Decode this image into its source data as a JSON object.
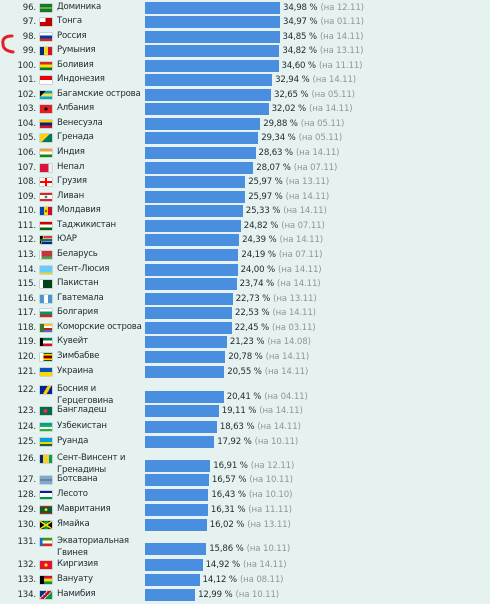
{
  "accent": {
    "bar": "#4a8ee0",
    "marker": "#e31e24",
    "background": "#e6f2ef"
  },
  "rows": [
    {
      "rank": "96.",
      "country": "Доминика",
      "value": 34.98,
      "value_label": "34,98 %",
      "date_label": "(на 12.11)",
      "flag": "dominica-flag-icon"
    },
    {
      "rank": "97.",
      "country": "Тонга",
      "value": 34.97,
      "value_label": "34,97 %",
      "date_label": "(на 01.11)",
      "flag": "tonga-flag-icon"
    },
    {
      "rank": "98.",
      "country": "Россия",
      "value": 34.85,
      "value_label": "34,85 %",
      "date_label": "(на 14.11)",
      "flag": "russia-flag-icon"
    },
    {
      "rank": "99.",
      "country": "Румыния",
      "value": 34.82,
      "value_label": "34,82 %",
      "date_label": "(на 13.11)",
      "flag": "romania-flag-icon"
    },
    {
      "rank": "100.",
      "country": "Боливия",
      "value": 34.6,
      "value_label": "34,60 %",
      "date_label": "(на 11.11)",
      "flag": "bolivia-flag-icon"
    },
    {
      "rank": "101.",
      "country": "Индонезия",
      "value": 32.94,
      "value_label": "32,94 %",
      "date_label": "(на 14.11)",
      "flag": "indonesia-flag-icon"
    },
    {
      "rank": "102.",
      "country": "Багамские острова",
      "value": 32.65,
      "value_label": "32,65 %",
      "date_label": "(на 05.11)",
      "flag": "bahamas-flag-icon"
    },
    {
      "rank": "103.",
      "country": "Албания",
      "value": 32.02,
      "value_label": "32,02 %",
      "date_label": "(на 14.11)",
      "flag": "albania-flag-icon"
    },
    {
      "rank": "104.",
      "country": "Венесуэла",
      "value": 29.88,
      "value_label": "29,88 %",
      "date_label": "(на 05.11)",
      "flag": "venezuela-flag-icon"
    },
    {
      "rank": "105.",
      "country": "Гренада",
      "value": 29.34,
      "value_label": "29,34 %",
      "date_label": "(на 05.11)",
      "flag": "grenada-flag-icon"
    },
    {
      "rank": "106.",
      "country": "Индия",
      "value": 28.63,
      "value_label": "28,63 %",
      "date_label": "(на 14.11)",
      "flag": "india-flag-icon"
    },
    {
      "rank": "107.",
      "country": "Непал",
      "value": 28.07,
      "value_label": "28,07 %",
      "date_label": "(на 07.11)",
      "flag": "nepal-flag-icon"
    },
    {
      "rank": "108.",
      "country": "Грузия",
      "value": 25.97,
      "value_label": "25,97 %",
      "date_label": "(на 13.11)",
      "flag": "georgia-flag-icon"
    },
    {
      "rank": "109.",
      "country": "Ливан",
      "value": 25.97,
      "value_label": "25,97 %",
      "date_label": "(на 14.11)",
      "flag": "lebanon-flag-icon"
    },
    {
      "rank": "110.",
      "country": "Молдавия",
      "value": 25.33,
      "value_label": "25,33 %",
      "date_label": "(на 14.11)",
      "flag": "moldova-flag-icon"
    },
    {
      "rank": "111.",
      "country": "Таджикистан",
      "value": 24.82,
      "value_label": "24,82 %",
      "date_label": "(на 07.11)",
      "flag": "tajikistan-flag-icon"
    },
    {
      "rank": "112.",
      "country": "ЮАР",
      "value": 24.39,
      "value_label": "24,39 %",
      "date_label": "(на 14.11)",
      "flag": "south-africa-flag-icon"
    },
    {
      "rank": "113.",
      "country": "Беларусь",
      "value": 24.19,
      "value_label": "24,19 %",
      "date_label": "(на 07.11)",
      "flag": "belarus-flag-icon"
    },
    {
      "rank": "114.",
      "country": "Сент-Люсия",
      "value": 24.0,
      "value_label": "24,00 %",
      "date_label": "(на 14.11)",
      "flag": "saint-lucia-flag-icon"
    },
    {
      "rank": "115.",
      "country": "Пакистан",
      "value": 23.74,
      "value_label": "23,74 %",
      "date_label": "(на 14.11)",
      "flag": "pakistan-flag-icon"
    },
    {
      "rank": "116.",
      "country": "Гватемала",
      "value": 22.73,
      "value_label": "22,73 %",
      "date_label": "(на 13.11)",
      "flag": "guatemala-flag-icon"
    },
    {
      "rank": "117.",
      "country": "Болгария",
      "value": 22.53,
      "value_label": "22,53 %",
      "date_label": "(на 14.11)",
      "flag": "bulgaria-flag-icon"
    },
    {
      "rank": "118.",
      "country": "Коморские острова",
      "value": 22.45,
      "value_label": "22,45 %",
      "date_label": "(на 03.11)",
      "flag": "comoros-flag-icon"
    },
    {
      "rank": "119.",
      "country": "Кувейт",
      "value": 21.23,
      "value_label": "21,23 %",
      "date_label": "(на 14.08)",
      "flag": "kuwait-flag-icon"
    },
    {
      "rank": "120.",
      "country": "Зимбабве",
      "value": 20.78,
      "value_label": "20,78 %",
      "date_label": "(на 14.11)",
      "flag": "zimbabwe-flag-icon"
    },
    {
      "rank": "121.",
      "country": "Украина",
      "value": 20.55,
      "value_label": "20,55 %",
      "date_label": "(на 14.11)",
      "flag": "ukraine-flag-icon"
    },
    {
      "rank": "122.",
      "country": "Босния и Герцеговина",
      "value": 20.41,
      "value_label": "20,41 %",
      "date_label": "(на 04.11)",
      "flag": "bosnia-flag-icon"
    },
    {
      "rank": "123.",
      "country": "Бангладеш",
      "value": 19.11,
      "value_label": "19,11 %",
      "date_label": "(на 14.11)",
      "flag": "bangladesh-flag-icon"
    },
    {
      "rank": "124.",
      "country": "Узбекистан",
      "value": 18.63,
      "value_label": "18,63 %",
      "date_label": "(на 14.11)",
      "flag": "uzbekistan-flag-icon"
    },
    {
      "rank": "125.",
      "country": "Руанда",
      "value": 17.92,
      "value_label": "17,92 %",
      "date_label": "(на 10.11)",
      "flag": "rwanda-flag-icon"
    },
    {
      "rank": "126.",
      "country": "Сент-Винсент и Гренадины",
      "value": 16.91,
      "value_label": "16,91 %",
      "date_label": "(на 12.11)",
      "flag": "saint-vincent-flag-icon"
    },
    {
      "rank": "127.",
      "country": "Ботсвана",
      "value": 16.57,
      "value_label": "16,57 %",
      "date_label": "(на 10.11)",
      "flag": "botswana-flag-icon"
    },
    {
      "rank": "128.",
      "country": "Лесото",
      "value": 16.43,
      "value_label": "16,43 %",
      "date_label": "(на 10.10)",
      "flag": "lesotho-flag-icon"
    },
    {
      "rank": "129.",
      "country": "Мавритания",
      "value": 16.31,
      "value_label": "16,31 %",
      "date_label": "(на 11.11)",
      "flag": "mauritania-flag-icon"
    },
    {
      "rank": "130.",
      "country": "Ямайка",
      "value": 16.02,
      "value_label": "16,02 %",
      "date_label": "(на 13.11)",
      "flag": "jamaica-flag-icon"
    },
    {
      "rank": "131.",
      "country": "Экваториальная Гвинея",
      "value": 15.86,
      "value_label": "15,86 %",
      "date_label": "(на 10.11)",
      "flag": "equatorial-guinea-flag-icon"
    },
    {
      "rank": "132.",
      "country": "Киргизия",
      "value": 14.92,
      "value_label": "14,92 %",
      "date_label": "(на 14.11)",
      "flag": "kyrgyzstan-flag-icon"
    },
    {
      "rank": "133.",
      "country": "Вануату",
      "value": 14.12,
      "value_label": "14,12 %",
      "date_label": "(на 08.11)",
      "flag": "vanuatu-flag-icon"
    },
    {
      "rank": "134.",
      "country": "Намибия",
      "value": 12.99,
      "value_label": "12,99 %",
      "date_label": "(на 10.11)",
      "flag": "namibia-flag-icon"
    }
  ]
}
